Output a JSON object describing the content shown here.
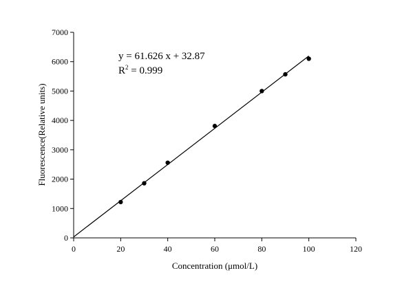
{
  "chart_data": {
    "type": "scatter",
    "xlabel": "Concentration (μmol/L)",
    "ylabel": "Fluorescence(Relative units)",
    "xlim": [
      0,
      120
    ],
    "ylim": [
      0,
      7000
    ],
    "xticks": [
      0,
      20,
      40,
      60,
      80,
      100,
      120
    ],
    "yticks": [
      0,
      1000,
      2000,
      3000,
      4000,
      5000,
      6000,
      7000
    ],
    "grid": false,
    "series": [
      {
        "points": [
          {
            "x": 20,
            "y": 1220
          },
          {
            "x": 30,
            "y": 1860
          },
          {
            "x": 40,
            "y": 2560
          },
          {
            "x": 60,
            "y": 3810
          },
          {
            "x": 80,
            "y": 5000
          },
          {
            "x": 90,
            "y": 5570
          },
          {
            "x": 100,
            "y": 6100
          }
        ]
      }
    ],
    "trendline": {
      "slope": 61.626,
      "intercept": 32.87,
      "x_range": [
        0,
        100
      ]
    },
    "annotations": {
      "equation": "y = 61.626 x + 32.87",
      "r2_prefix": "R",
      "r2_sup": "2",
      "r2_value": " = 0.999"
    }
  }
}
